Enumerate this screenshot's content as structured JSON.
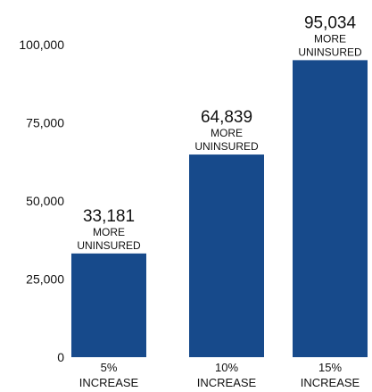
{
  "chart_data": {
    "type": "bar",
    "categories": [
      "5%\nINCREASE",
      "10%\nINCREASE",
      "15%\nINCREASE"
    ],
    "category_lines": [
      [
        "5%",
        "INCREASE"
      ],
      [
        "10%",
        "INCREASE"
      ],
      [
        "15%",
        "INCREASE"
      ]
    ],
    "values": [
      33181,
      64839,
      95034
    ],
    "value_labels": [
      "33,181",
      "64,839",
      "95,034"
    ],
    "annotation_lines": [
      "MORE",
      "UNINSURED"
    ],
    "ylim": [
      0,
      105000
    ],
    "yticks": [
      0,
      25000,
      50000,
      75000,
      100000
    ],
    "ytick_labels": [
      "0",
      "25,000",
      "50,000",
      "75,000",
      "100,000"
    ],
    "title": "",
    "xlabel": "",
    "ylabel": "",
    "grid": false,
    "bar_color": "#174a8b"
  }
}
